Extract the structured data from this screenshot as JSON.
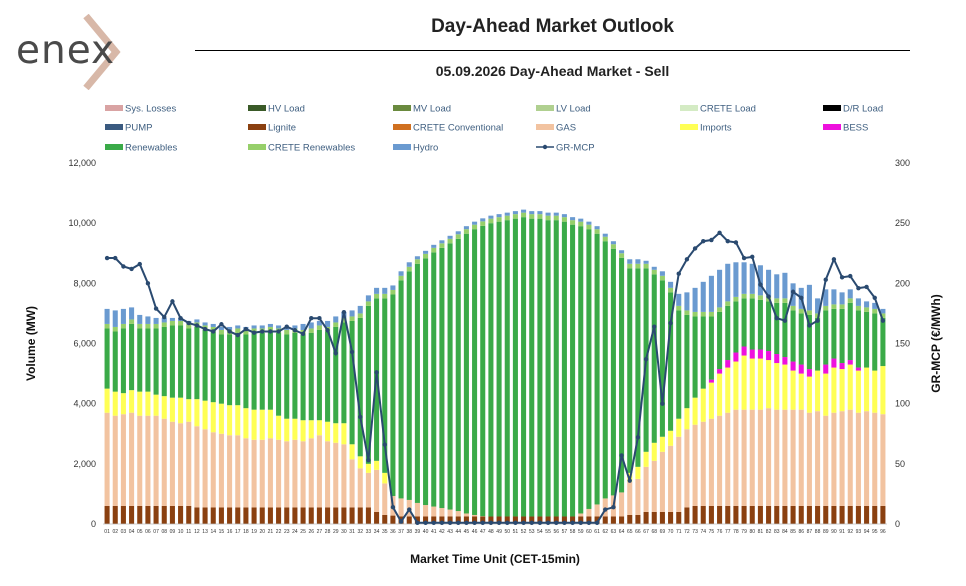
{
  "logo": {
    "text": "enex"
  },
  "header": {
    "title": "Day-Ahead Market Outlook",
    "subtitle": "05.09.2026  Day-Ahead Market - Sell"
  },
  "chart_data": {
    "type": "bar",
    "stacked": true,
    "x_categories_count": 96,
    "xlabel": "Market Time Unit (CET-15min)",
    "ylabel": "Volume (MW)",
    "y2label": "GR-MCP (€/MWh)",
    "ylim": [
      0,
      12000
    ],
    "yticks": [
      "0",
      "2,000",
      "4,000",
      "6,000",
      "8,000",
      "10,000",
      "12,000"
    ],
    "y2lim": [
      0,
      300
    ],
    "y2ticks": [
      "0",
      "50",
      "100",
      "150",
      "200",
      "250",
      "300"
    ],
    "legend_placement": "top",
    "legend": [
      {
        "name": "Sys. Losses",
        "color": "#d9a3a3",
        "kind": "bar"
      },
      {
        "name": "HV Load",
        "color": "#3a5a28",
        "kind": "bar"
      },
      {
        "name": "MV Load",
        "color": "#6a8a3e",
        "kind": "bar"
      },
      {
        "name": "LV Load",
        "color": "#b0d090",
        "kind": "bar"
      },
      {
        "name": "CRETE Load",
        "color": "#d4ebc4",
        "kind": "bar"
      },
      {
        "name": "D/R Load",
        "color": "#000000",
        "kind": "bar"
      },
      {
        "name": "PUMP",
        "color": "#3a5a80",
        "kind": "bar"
      },
      {
        "name": "Lignite",
        "color": "#8a4010",
        "kind": "bar"
      },
      {
        "name": "CRETE Conventional",
        "color": "#d07020",
        "kind": "bar"
      },
      {
        "name": "GAS",
        "color": "#f2c3a0",
        "kind": "bar"
      },
      {
        "name": "Imports",
        "color": "#ffff55",
        "kind": "bar"
      },
      {
        "name": "BESS",
        "color": "#ee10dd",
        "kind": "bar"
      },
      {
        "name": "Renewables",
        "color": "#3aaa48",
        "kind": "bar"
      },
      {
        "name": "CRETE Renewables",
        "color": "#96cf6a",
        "kind": "bar"
      },
      {
        "name": "Hydro",
        "color": "#6a9ad0",
        "kind": "bar"
      },
      {
        "name": "GR-MCP",
        "color": "#2a4a70",
        "kind": "line"
      }
    ],
    "series": [
      {
        "name": "Lignite",
        "values": [
          600,
          600,
          600,
          600,
          600,
          600,
          600,
          600,
          600,
          600,
          600,
          550,
          550,
          550,
          550,
          550,
          550,
          550,
          550,
          550,
          550,
          550,
          550,
          550,
          550,
          550,
          550,
          550,
          550,
          550,
          550,
          550,
          550,
          400,
          300,
          280,
          250,
          250,
          250,
          250,
          250,
          250,
          250,
          250,
          250,
          250,
          250,
          250,
          250,
          250,
          250,
          250,
          250,
          250,
          250,
          250,
          250,
          250,
          250,
          250,
          250,
          250,
          250,
          250,
          300,
          300,
          400,
          400,
          400,
          400,
          400,
          550,
          600,
          600,
          600,
          600,
          600,
          600,
          600,
          600,
          600,
          600,
          600,
          600,
          600,
          600,
          600,
          600,
          600,
          600,
          600,
          600,
          600,
          600,
          600,
          600
        ]
      },
      {
        "name": "GAS",
        "values": [
          3100,
          3000,
          3050,
          3100,
          3000,
          3000,
          3000,
          2900,
          2800,
          2750,
          2800,
          2700,
          2600,
          2500,
          2450,
          2400,
          2400,
          2300,
          2250,
          2250,
          2300,
          2250,
          2200,
          2250,
          2200,
          2300,
          2400,
          2200,
          2150,
          2100,
          1600,
          1300,
          1150,
          1400,
          1050,
          650,
          600,
          550,
          450,
          380,
          330,
          280,
          230,
          180,
          100,
          50,
          10,
          0,
          0,
          0,
          0,
          0,
          0,
          0,
          0,
          0,
          0,
          0,
          100,
          250,
          400,
          600,
          700,
          800,
          1100,
          1200,
          1500,
          1700,
          2000,
          2200,
          2500,
          2600,
          2700,
          2800,
          2900,
          3000,
          3100,
          3200,
          3200,
          3200,
          3200,
          3250,
          3200,
          3200,
          3200,
          3200,
          3100,
          3150,
          3000,
          3100,
          3150,
          3200,
          3100,
          3150,
          3100,
          3050
        ]
      },
      {
        "name": "Imports",
        "values": [
          800,
          800,
          700,
          750,
          800,
          800,
          700,
          750,
          800,
          850,
          750,
          900,
          950,
          1000,
          1000,
          1000,
          1000,
          1000,
          1000,
          1000,
          950,
          800,
          750,
          700,
          700,
          600,
          500,
          650,
          650,
          700,
          500,
          400,
          300,
          300,
          350,
          0,
          0,
          0,
          0,
          0,
          0,
          0,
          0,
          0,
          0,
          0,
          0,
          0,
          0,
          0,
          0,
          0,
          0,
          0,
          0,
          0,
          0,
          0,
          0,
          0,
          0,
          0,
          0,
          0,
          300,
          400,
          500,
          600,
          500,
          500,
          600,
          700,
          900,
          1100,
          1200,
          1400,
          1500,
          1600,
          1800,
          1700,
          1700,
          1600,
          1550,
          1500,
          1300,
          1200,
          1200,
          1350,
          1400,
          1500,
          1400,
          1500,
          1400,
          1450,
          1400,
          1600
        ]
      },
      {
        "name": "BESS",
        "values": [
          0,
          0,
          0,
          0,
          0,
          0,
          0,
          0,
          0,
          0,
          0,
          0,
          0,
          0,
          0,
          0,
          0,
          0,
          0,
          0,
          0,
          0,
          0,
          0,
          0,
          0,
          0,
          0,
          0,
          0,
          0,
          0,
          0,
          0,
          0,
          0,
          0,
          0,
          0,
          0,
          0,
          0,
          0,
          0,
          0,
          0,
          0,
          0,
          0,
          0,
          0,
          0,
          0,
          0,
          0,
          0,
          0,
          0,
          0,
          0,
          0,
          0,
          0,
          0,
          0,
          0,
          0,
          0,
          0,
          0,
          0,
          0,
          0,
          0,
          100,
          150,
          250,
          300,
          300,
          300,
          300,
          300,
          300,
          250,
          300,
          300,
          250,
          0,
          300,
          300,
          200,
          150,
          100,
          0,
          0,
          0
        ]
      },
      {
        "name": "Renewables",
        "values": [
          2000,
          2000,
          2150,
          2200,
          2100,
          2100,
          2200,
          2300,
          2400,
          2400,
          2350,
          2400,
          2350,
          2350,
          2300,
          2350,
          2400,
          2450,
          2550,
          2550,
          2600,
          2750,
          2800,
          2850,
          2850,
          2900,
          3000,
          3000,
          3200,
          3350,
          4100,
          4600,
          5250,
          5400,
          5800,
          6700,
          7250,
          7600,
          7950,
          8200,
          8450,
          8650,
          8850,
          9050,
          9300,
          9500,
          9650,
          9750,
          9800,
          9850,
          9900,
          9950,
          9900,
          9900,
          9850,
          9850,
          9800,
          9700,
          9550,
          9300,
          9000,
          8550,
          8200,
          7800,
          6800,
          6600,
          6100,
          5600,
          5200,
          4600,
          3600,
          3100,
          2700,
          2400,
          2100,
          1900,
          1800,
          1700,
          1600,
          1700,
          1650,
          1650,
          1700,
          1800,
          1700,
          1700,
          1800,
          1750,
          1800,
          1650,
          1800,
          1900,
          1900,
          1850,
          1900,
          1600
        ]
      },
      {
        "name": "CRETE Renewables",
        "values": [
          150,
          150,
          150,
          150,
          150,
          150,
          150,
          150,
          150,
          150,
          150,
          150,
          150,
          150,
          150,
          150,
          150,
          150,
          150,
          150,
          150,
          150,
          150,
          150,
          150,
          150,
          150,
          150,
          150,
          150,
          150,
          150,
          150,
          150,
          150,
          150,
          150,
          150,
          150,
          150,
          150,
          150,
          150,
          150,
          150,
          150,
          150,
          150,
          150,
          150,
          150,
          150,
          150,
          150,
          150,
          150,
          150,
          150,
          150,
          150,
          150,
          150,
          150,
          150,
          150,
          150,
          150,
          150,
          150,
          150,
          150,
          150,
          150,
          150,
          150,
          150,
          150,
          150,
          150,
          150,
          150,
          150,
          150,
          150,
          150,
          150,
          150,
          150,
          150,
          150,
          150,
          150,
          150,
          150,
          150,
          150
        ]
      },
      {
        "name": "Hydro",
        "values": [
          500,
          550,
          500,
          400,
          300,
          250,
          200,
          150,
          100,
          100,
          100,
          100,
          100,
          100,
          100,
          100,
          100,
          100,
          100,
          100,
          100,
          100,
          100,
          100,
          200,
          200,
          150,
          200,
          200,
          200,
          200,
          250,
          200,
          200,
          200,
          150,
          150,
          150,
          100,
          100,
          100,
          100,
          100,
          100,
          100,
          100,
          100,
          100,
          100,
          100,
          100,
          100,
          100,
          100,
          100,
          100,
          100,
          100,
          100,
          100,
          100,
          100,
          100,
          100,
          150,
          150,
          100,
          100,
          150,
          200,
          400,
          600,
          800,
          1000,
          1200,
          1250,
          1250,
          1150,
          1050,
          1000,
          1000,
          900,
          800,
          850,
          750,
          700,
          850,
          500,
          550,
          500,
          400,
          300,
          250,
          200,
          200,
          150
        ]
      },
      {
        "name": "GR-MCP",
        "values": [
          221,
          221,
          214,
          212,
          216,
          200,
          179,
          172,
          185,
          171,
          167,
          165,
          162,
          160,
          166,
          160,
          157,
          162,
          159,
          160,
          160,
          160,
          164,
          161,
          158,
          171,
          171,
          161,
          142,
          176,
          143,
          89,
          53,
          126,
          66,
          14,
          2,
          12,
          1,
          1,
          1,
          1,
          1,
          1,
          1,
          1,
          1,
          1,
          1,
          1,
          1,
          1,
          1,
          1,
          1,
          1,
          1,
          1,
          1,
          1,
          1,
          12,
          14,
          57,
          36,
          72,
          137,
          164,
          100,
          167,
          208,
          220,
          229,
          235,
          236,
          242,
          235,
          234,
          221,
          222,
          199,
          189,
          171,
          169,
          193,
          188,
          165,
          169,
          203,
          220,
          205,
          206,
          196,
          197,
          188,
          169
        ]
      }
    ]
  }
}
